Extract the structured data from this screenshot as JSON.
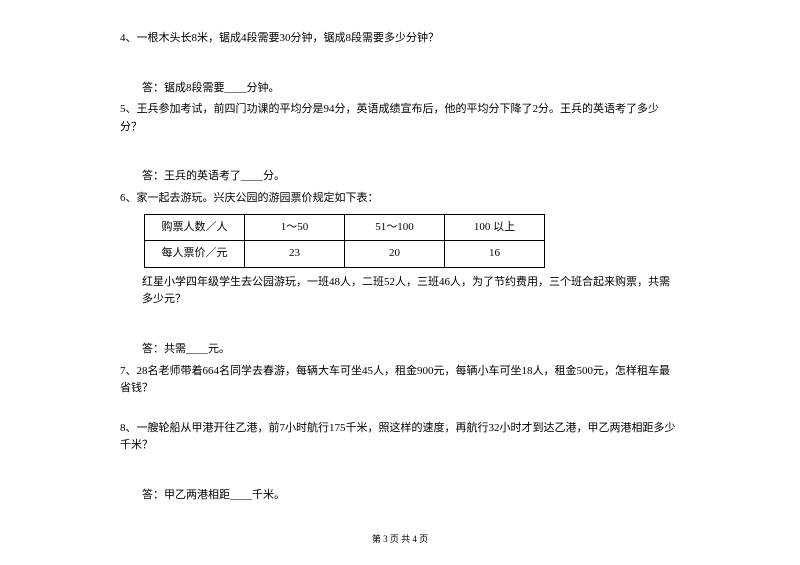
{
  "q4": {
    "text": "4、一根木头长8米，锯成4段需要30分钟，锯成8段需要多少分钟？",
    "answer": "答：锯成8段需要____分钟。"
  },
  "q5": {
    "text": "5、王兵参加考试，前四门功课的平均分是94分，英语成绩宣布后，他的平均分下降了2分。王兵的英语考了多少分？",
    "answer": "答：王兵的英语考了____分。"
  },
  "q6": {
    "text": "6、家一起去游玩。兴庆公园的游园票价规定如下表：",
    "table": {
      "r1c1": "购票人数／人",
      "r1c2": "1～50",
      "r1c3": "51～100",
      "r1c4": "100 以上",
      "r2c1": "每人票价／元",
      "r2c2": "23",
      "r2c3": "20",
      "r2c4": "16"
    },
    "desc": "红星小学四年级学生去公园游玩，一班48人，二班52人，三班46人，为了节约费用，三个班合起来购票，共需多少元？",
    "answer": "答：共需____元。"
  },
  "q7": {
    "text": "7、28名老师带着664名同学去春游，每辆大车可坐45人，租金900元，每辆小车可坐18人，租金500元，怎样租车最省钱？"
  },
  "q8": {
    "text": "8、一艘轮船从甲港开往乙港，前7小时航行175千米，照这样的速度，再航行32小时才到达乙港，甲乙两港相距多少千米？",
    "answer": "答：甲乙两港相距____千米。"
  },
  "footer": "第 3 页 共 4 页"
}
